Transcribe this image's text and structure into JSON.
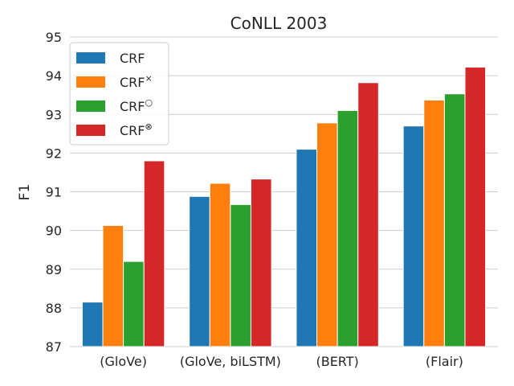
{
  "chart_data": {
    "type": "bar",
    "title": "CoNLL 2003",
    "xlabel": "",
    "ylabel": "F1",
    "ylim": [
      87,
      95
    ],
    "yticks": [
      "87",
      "88",
      "89",
      "90",
      "91",
      "92",
      "93",
      "94",
      "95"
    ],
    "grid": true,
    "legend_position": "top-left",
    "categories": [
      "(GloVe)",
      "(GloVe, biLSTM)",
      "(BERT)",
      "(Flair)"
    ],
    "series": [
      {
        "name": "CRF",
        "sup": "",
        "color": "#1f77b4",
        "values": [
          88.15,
          90.88,
          92.1,
          92.7
        ]
      },
      {
        "name": "CRF",
        "sup": "×",
        "color": "#ff7f0e",
        "values": [
          90.13,
          91.22,
          92.78,
          93.37
        ]
      },
      {
        "name": "CRF",
        "sup": "○",
        "color": "#2ca02c",
        "values": [
          89.2,
          90.67,
          93.1,
          93.53
        ]
      },
      {
        "name": "CRF",
        "sup": "⊗",
        "color": "#d62728",
        "values": [
          91.8,
          91.33,
          93.82,
          94.22
        ]
      }
    ]
  }
}
